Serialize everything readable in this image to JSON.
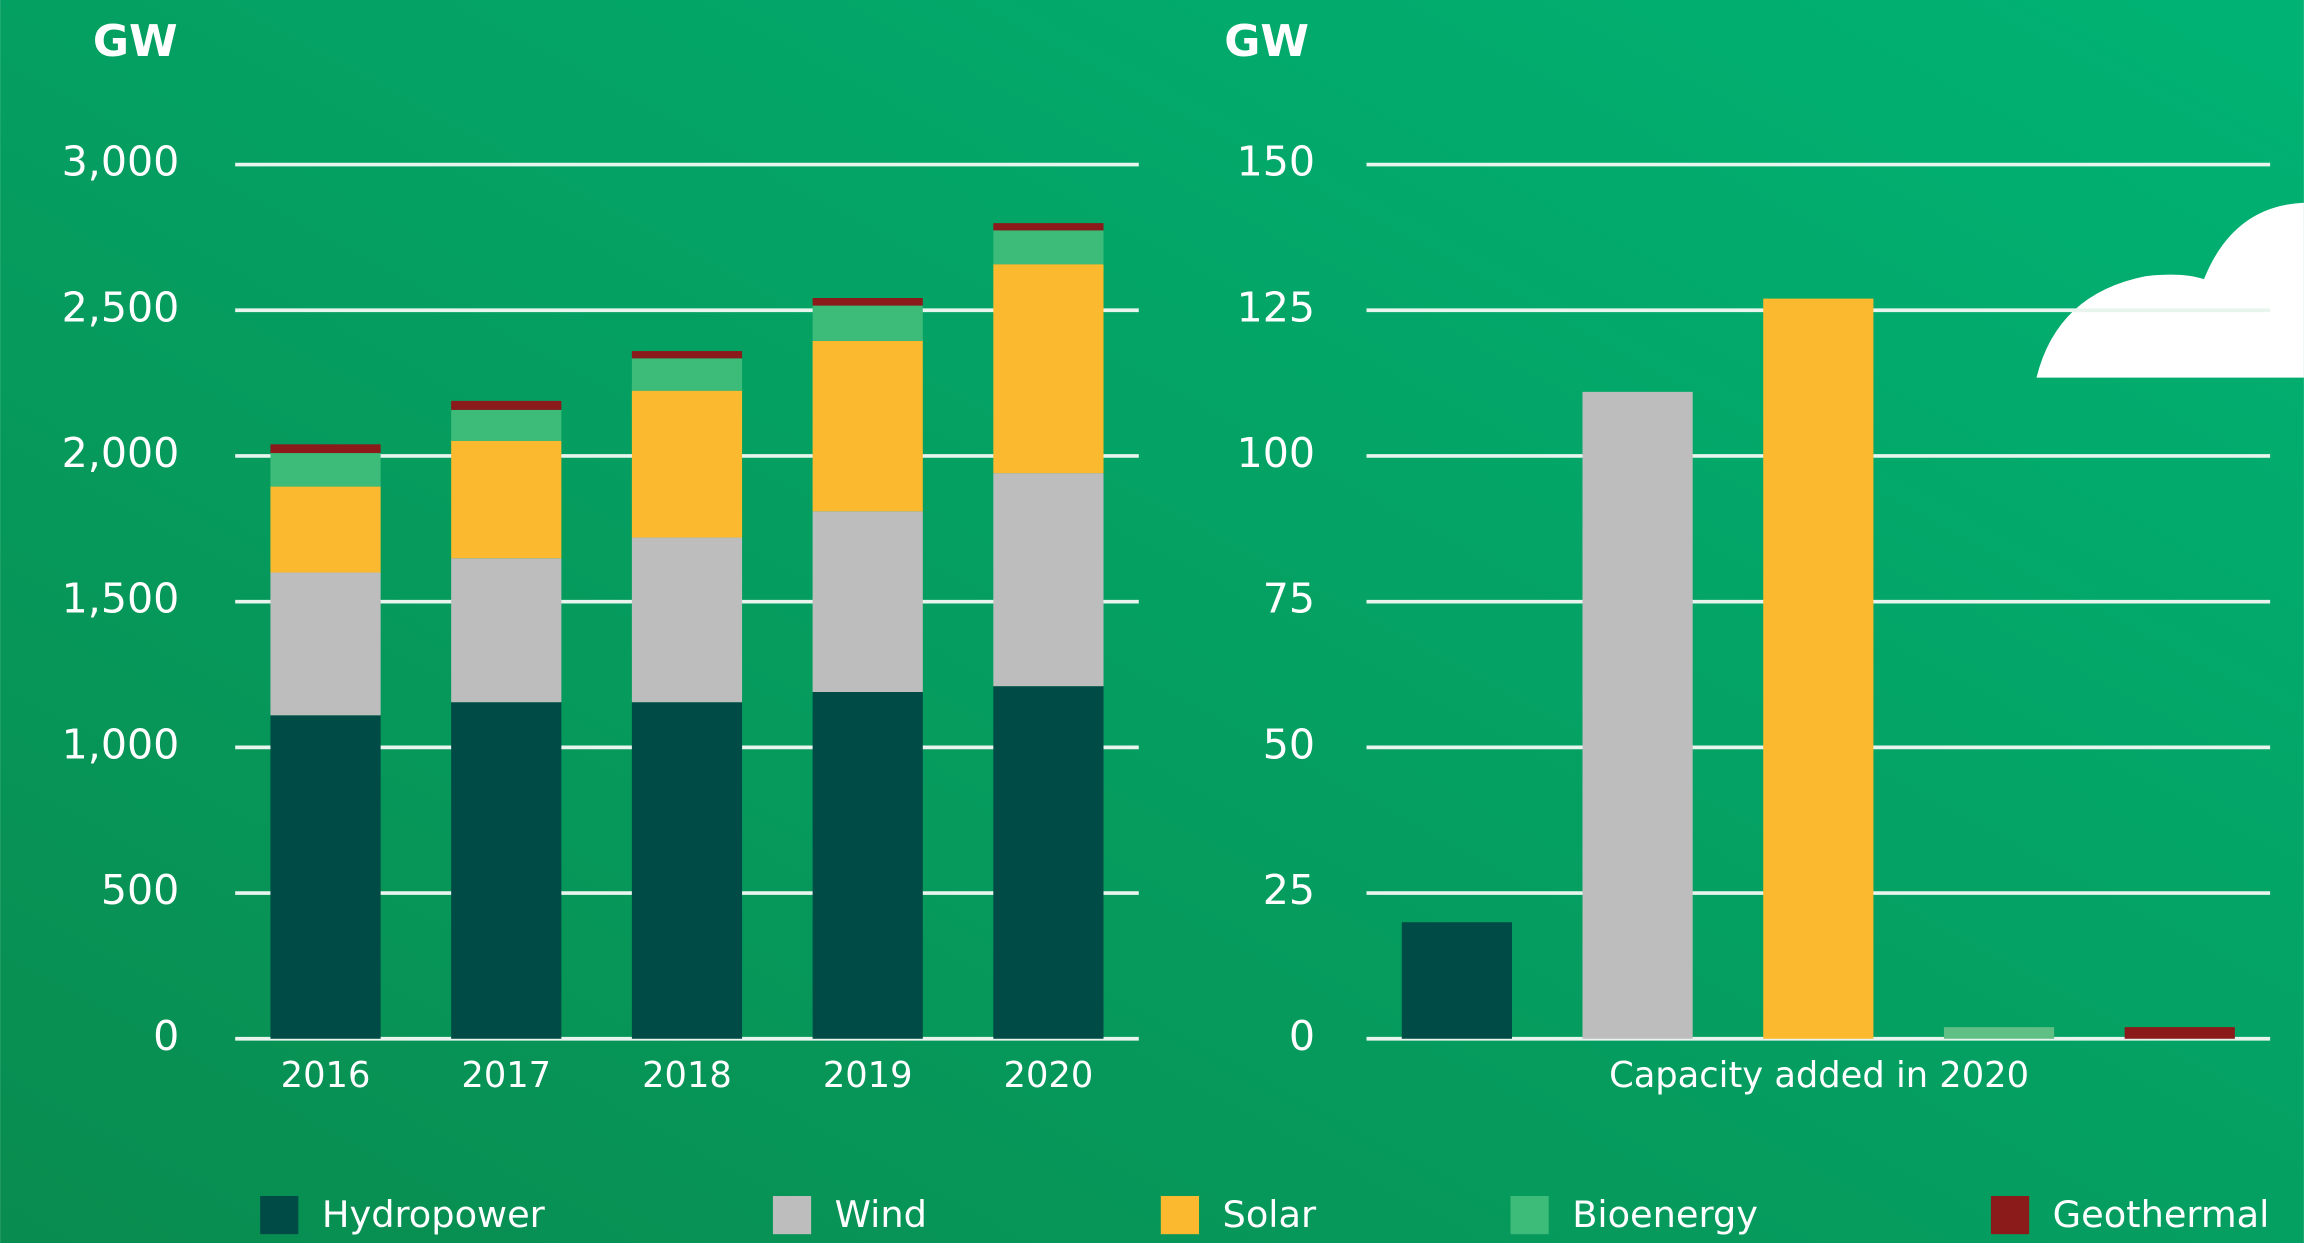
{
  "chart_data": [
    {
      "type": "stacked-bar",
      "y_label": "GW",
      "categories": [
        "2016",
        "2017",
        "2018",
        "2019",
        "2020"
      ],
      "series": [
        {
          "name": "Hydropower",
          "color": "#004b45",
          "values": [
            1110,
            1155,
            1155,
            1190,
            1210
          ]
        },
        {
          "name": "Wind",
          "color": "#bdbdbd",
          "values": [
            490,
            494,
            565,
            620,
            731
          ]
        },
        {
          "name": "Solar",
          "color": "#fbb930",
          "values": [
            295,
            403,
            504,
            585,
            717
          ]
        },
        {
          "name": "Bioenergy",
          "color": "#3dbb78",
          "values": [
            115,
            106,
            111,
            121,
            116
          ]
        },
        {
          "name": "Geothermal",
          "color": "#8b1a1a",
          "values": [
            30,
            31,
            25,
            26,
            25
          ]
        }
      ],
      "ylim": [
        0,
        3000
      ],
      "yticks": [
        0,
        500,
        {
          "value": 1000,
          "label": "1,000"
        },
        {
          "value": 1500,
          "label": "1,500"
        },
        {
          "value": 2000,
          "label": "2,000"
        },
        {
          "value": 2500,
          "label": "2,500"
        },
        {
          "value": 3000,
          "label": "3,000"
        }
      ],
      "grid": true
    },
    {
      "type": "bar",
      "y_label": "GW",
      "x_label": "Capacity added in 2020",
      "categories": [
        null,
        null,
        null,
        null,
        null
      ],
      "values": [
        20,
        111,
        127,
        2,
        2
      ],
      "colors": [
        "#004b45",
        "#bdbdbd",
        "#fbb930",
        "#5fbf85",
        "#8b1a1a"
      ],
      "ylim": [
        0,
        150
      ],
      "yticks": [
        0,
        25,
        50,
        75,
        100,
        125,
        150
      ],
      "grid": true
    }
  ]
}
